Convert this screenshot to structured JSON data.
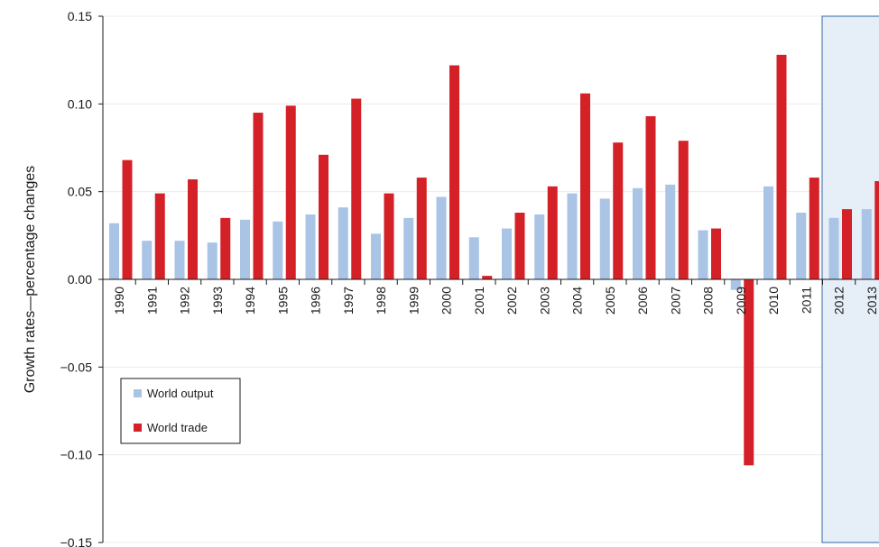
{
  "chart_data": {
    "type": "bar",
    "ylabel": "Growth rates—percentage changes",
    "xlabel": "",
    "ylim": [
      -0.15,
      0.15
    ],
    "yticks": [
      0.15,
      0.1,
      0.05,
      0.0,
      -0.05,
      -0.1,
      -0.15
    ],
    "ytick_labels": [
      "0.15",
      "0.10",
      "0.05",
      "0.00",
      "−0.05",
      "−0.10",
      "−0.15"
    ],
    "grid": true,
    "legend_position": "middle-left",
    "forecast_shading_from": "2012",
    "categories": [
      "1990",
      "1991",
      "1992",
      "1993",
      "1994",
      "1995",
      "1996",
      "1997",
      "1998",
      "1999",
      "2000",
      "2001",
      "2002",
      "2003",
      "2004",
      "2005",
      "2006",
      "2007",
      "2008",
      "2009",
      "2010",
      "2011",
      "2012",
      "2013"
    ],
    "series": [
      {
        "name": "World output",
        "color": "#a9c4e4",
        "values": [
          0.032,
          0.022,
          0.022,
          0.021,
          0.034,
          0.033,
          0.037,
          0.041,
          0.026,
          0.035,
          0.047,
          0.024,
          0.029,
          0.037,
          0.049,
          0.046,
          0.052,
          0.054,
          0.028,
          -0.006,
          0.053,
          0.038,
          0.035,
          0.04
        ]
      },
      {
        "name": "World trade",
        "color": "#d42027",
        "values": [
          0.068,
          0.049,
          0.057,
          0.035,
          0.095,
          0.099,
          0.071,
          0.103,
          0.049,
          0.058,
          0.122,
          0.002,
          0.038,
          0.053,
          0.106,
          0.078,
          0.093,
          0.079,
          0.029,
          -0.106,
          0.128,
          0.058,
          0.04,
          0.056
        ]
      }
    ]
  }
}
